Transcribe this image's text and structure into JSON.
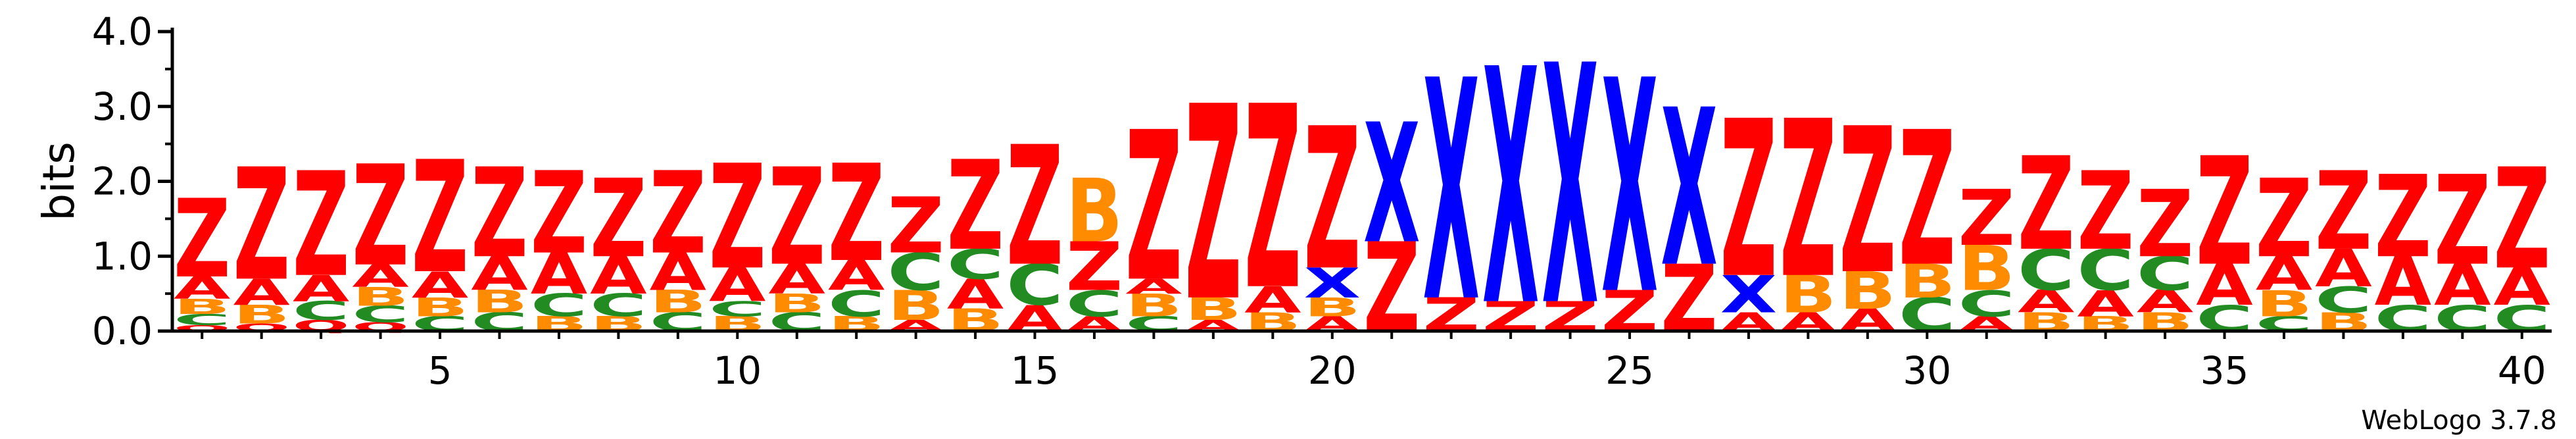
{
  "chart_data": {
    "type": "sequence_logo",
    "ylabel": "bits",
    "ylim": [
      0,
      4
    ],
    "yticks": [
      "0.0",
      "1.0",
      "2.0",
      "3.0",
      "4.0"
    ],
    "xticks": [
      5,
      10,
      15,
      20,
      25,
      30,
      35,
      40
    ],
    "positions": 40,
    "credit": "WebLogo 3.7.8",
    "colors": {
      "Z": "#ff0000",
      "A": "#ff0000",
      "X": "#0000ff",
      "B": "#ff8c00",
      "C": "#228b22",
      "Q": "#ff0000"
    },
    "columns": [
      [
        [
          "Q",
          0.08
        ],
        [
          "C",
          0.15
        ],
        [
          "B",
          0.2
        ],
        [
          "A",
          0.3
        ],
        [
          "Z",
          1.05
        ]
      ],
      [
        [
          "Q",
          0.1
        ],
        [
          "B",
          0.25
        ],
        [
          "A",
          0.35
        ],
        [
          "Z",
          1.5
        ]
      ],
      [
        [
          "Q",
          0.15
        ],
        [
          "C",
          0.25
        ],
        [
          "A",
          0.35
        ],
        [
          "Z",
          1.4
        ]
      ],
      [
        [
          "Q",
          0.12
        ],
        [
          "C",
          0.22
        ],
        [
          "B",
          0.25
        ],
        [
          "A",
          0.3
        ],
        [
          "Z",
          1.35
        ]
      ],
      [
        [
          "C",
          0.2
        ],
        [
          "B",
          0.25
        ],
        [
          "A",
          0.35
        ],
        [
          "Z",
          1.5
        ]
      ],
      [
        [
          "C",
          0.25
        ],
        [
          "B",
          0.3
        ],
        [
          "A",
          0.45
        ],
        [
          "Z",
          1.2
        ]
      ],
      [
        [
          "B",
          0.2
        ],
        [
          "C",
          0.3
        ],
        [
          "A",
          0.55
        ],
        [
          "Z",
          1.1
        ]
      ],
      [
        [
          "B",
          0.2
        ],
        [
          "C",
          0.3
        ],
        [
          "A",
          0.5
        ],
        [
          "Z",
          1.05
        ]
      ],
      [
        [
          "C",
          0.25
        ],
        [
          "B",
          0.3
        ],
        [
          "A",
          0.5
        ],
        [
          "Z",
          1.1
        ]
      ],
      [
        [
          "B",
          0.2
        ],
        [
          "C",
          0.2
        ],
        [
          "A",
          0.45
        ],
        [
          "Z",
          1.4
        ]
      ],
      [
        [
          "C",
          0.25
        ],
        [
          "B",
          0.25
        ],
        [
          "A",
          0.4
        ],
        [
          "Z",
          1.3
        ]
      ],
      [
        [
          "B",
          0.2
        ],
        [
          "C",
          0.35
        ],
        [
          "A",
          0.4
        ],
        [
          "Z",
          1.3
        ]
      ],
      [
        [
          "A",
          0.15
        ],
        [
          "B",
          0.4
        ],
        [
          "C",
          0.5
        ],
        [
          "Z",
          0.75
        ]
      ],
      [
        [
          "B",
          0.3
        ],
        [
          "A",
          0.4
        ],
        [
          "C",
          0.4
        ],
        [
          "Z",
          1.2
        ]
      ],
      [
        [
          "A",
          0.35
        ],
        [
          "C",
          0.55
        ],
        [
          "Z",
          1.6
        ]
      ],
      [
        [
          "A",
          0.2
        ],
        [
          "C",
          0.35
        ],
        [
          "Z",
          0.65
        ],
        [
          "B",
          0.85
        ]
      ],
      [
        [
          "C",
          0.2
        ],
        [
          "B",
          0.3
        ],
        [
          "A",
          0.2
        ],
        [
          "Z",
          2.0
        ]
      ],
      [
        [
          "A",
          0.15
        ],
        [
          "B",
          0.3
        ],
        [
          "Z",
          2.6
        ]
      ],
      [
        [
          "B",
          0.25
        ],
        [
          "A",
          0.35
        ],
        [
          "Z",
          2.45
        ]
      ],
      [
        [
          "A",
          0.2
        ],
        [
          "B",
          0.25
        ],
        [
          "X",
          0.4
        ],
        [
          "Z",
          1.9
        ]
      ],
      [
        [
          "Z",
          1.2
        ],
        [
          "X",
          1.6
        ]
      ],
      [
        [
          "Z",
          0.45
        ],
        [
          "X",
          2.95
        ]
      ],
      [
        [
          "Z",
          0.4
        ],
        [
          "X",
          3.15
        ]
      ],
      [
        [
          "Z",
          0.4
        ],
        [
          "X",
          3.2
        ]
      ],
      [
        [
          "Z",
          0.55
        ],
        [
          "X",
          2.85
        ]
      ],
      [
        [
          "Z",
          0.9
        ],
        [
          "X",
          2.1
        ]
      ],
      [
        [
          "A",
          0.25
        ],
        [
          "X",
          0.5
        ],
        [
          "Z",
          2.1
        ]
      ],
      [
        [
          "A",
          0.25
        ],
        [
          "B",
          0.5
        ],
        [
          "Z",
          2.1
        ]
      ],
      [
        [
          "A",
          0.3
        ],
        [
          "B",
          0.5
        ],
        [
          "Z",
          1.95
        ]
      ],
      [
        [
          "C",
          0.45
        ],
        [
          "B",
          0.45
        ],
        [
          "Z",
          1.8
        ]
      ],
      [
        [
          "A",
          0.2
        ],
        [
          "C",
          0.35
        ],
        [
          "B",
          0.6
        ],
        [
          "Z",
          0.75
        ]
      ],
      [
        [
          "B",
          0.25
        ],
        [
          "A",
          0.3
        ],
        [
          "C",
          0.55
        ],
        [
          "Z",
          1.25
        ]
      ],
      [
        [
          "B",
          0.2
        ],
        [
          "A",
          0.35
        ],
        [
          "C",
          0.55
        ],
        [
          "Z",
          1.05
        ]
      ],
      [
        [
          "B",
          0.25
        ],
        [
          "A",
          0.3
        ],
        [
          "C",
          0.45
        ],
        [
          "Z",
          0.9
        ]
      ],
      [
        [
          "C",
          0.35
        ],
        [
          "A",
          0.55
        ],
        [
          "Z",
          1.45
        ]
      ],
      [
        [
          "C",
          0.2
        ],
        [
          "B",
          0.35
        ],
        [
          "A",
          0.45
        ],
        [
          "Z",
          1.05
        ]
      ],
      [
        [
          "B",
          0.25
        ],
        [
          "C",
          0.35
        ],
        [
          "A",
          0.5
        ],
        [
          "Z",
          1.05
        ]
      ],
      [
        [
          "C",
          0.35
        ],
        [
          "A",
          0.65
        ],
        [
          "Z",
          1.1
        ]
      ],
      [
        [
          "C",
          0.35
        ],
        [
          "A",
          0.55
        ],
        [
          "Z",
          1.2
        ]
      ],
      [
        [
          "C",
          0.35
        ],
        [
          "A",
          0.5
        ],
        [
          "Z",
          1.35
        ]
      ]
    ]
  }
}
